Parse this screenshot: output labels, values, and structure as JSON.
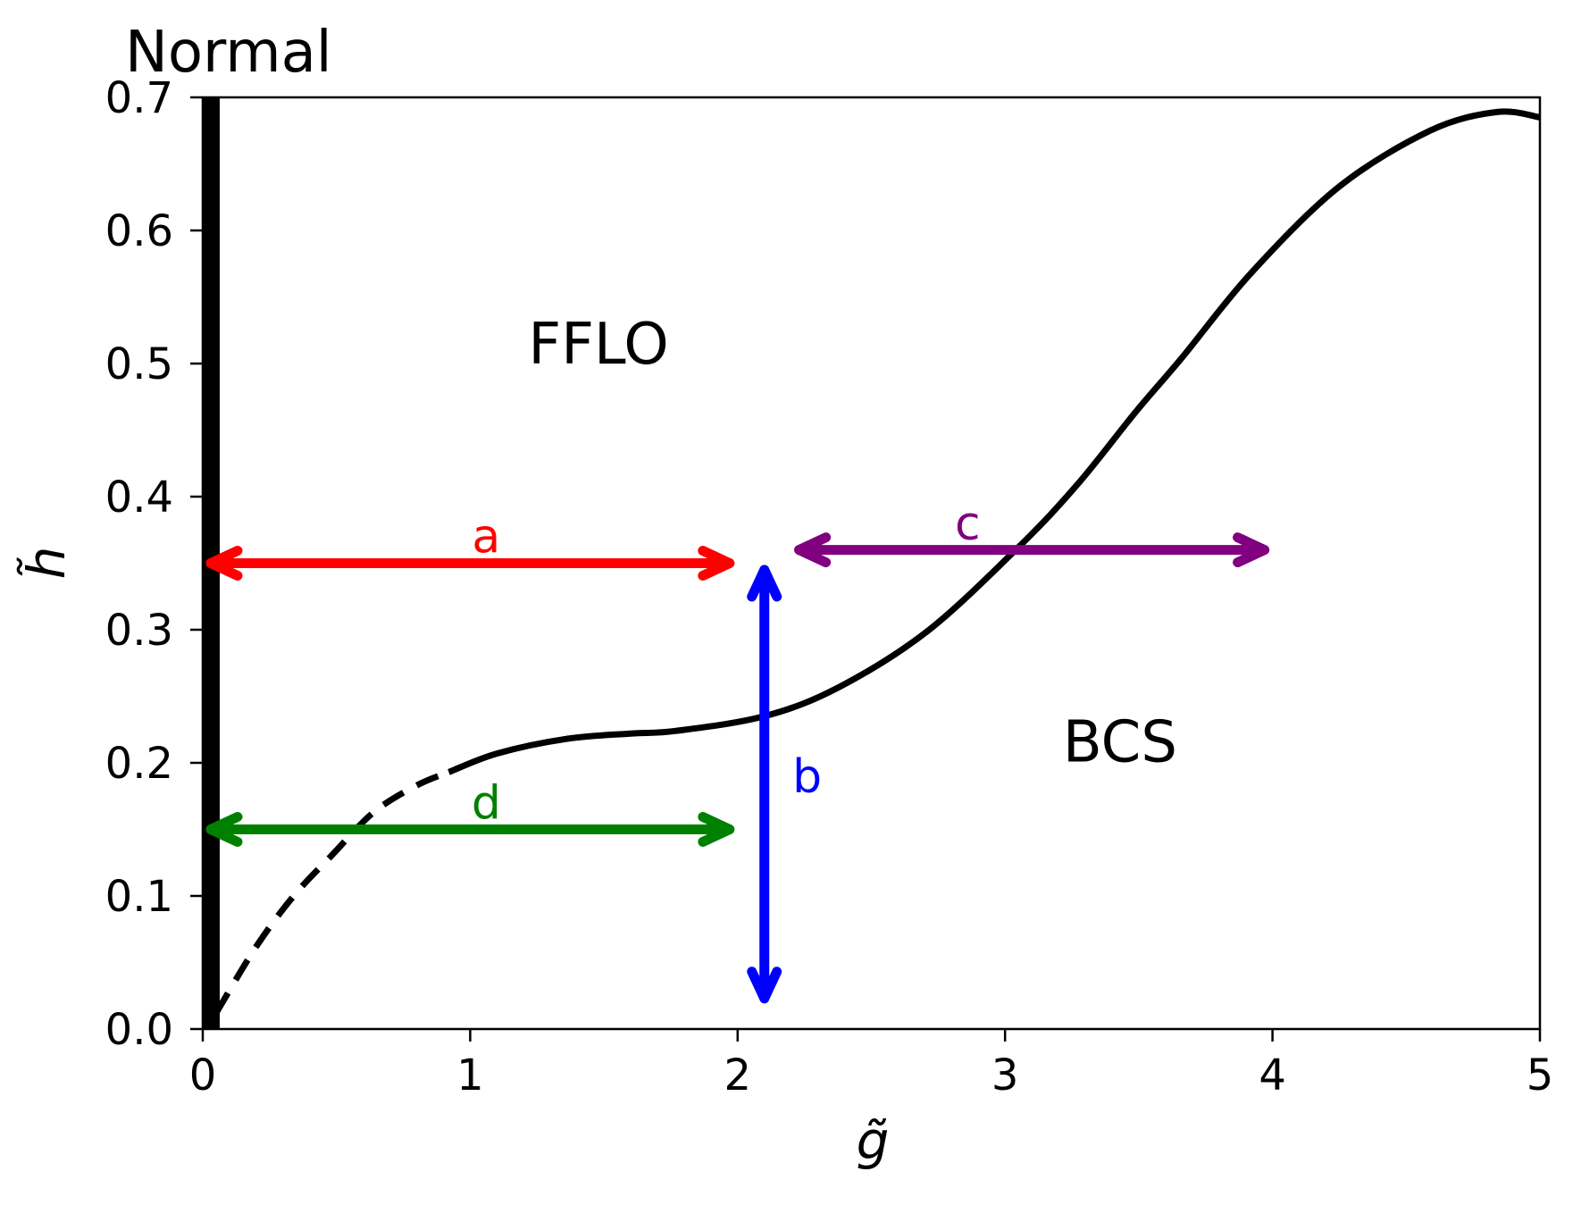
{
  "chart_data": {
    "type": "line",
    "title": "",
    "xlabel": "g̃",
    "ylabel": "h̃",
    "xlim": [
      0,
      5
    ],
    "ylim": [
      0.0,
      0.7
    ],
    "grid": false,
    "legend": null,
    "x_ticks": [
      0,
      1,
      2,
      3,
      4,
      5
    ],
    "x_tick_labels": [
      "0",
      "1",
      "2",
      "3",
      "4",
      "5"
    ],
    "y_ticks": [
      0.0,
      0.1,
      0.2,
      0.3,
      0.4,
      0.5,
      0.6,
      0.7
    ],
    "y_tick_labels": [
      "0.0",
      "0.1",
      "0.2",
      "0.3",
      "0.4",
      "0.5",
      "0.6",
      "0.7"
    ],
    "series": [
      {
        "name": "normal-boundary",
        "style": "solid-thick",
        "color": "#000000",
        "x": [
          0.03,
          0.03
        ],
        "y": [
          0.0,
          0.7
        ]
      },
      {
        "name": "fflo-bcs-boundary-dashed",
        "style": "dashed",
        "color": "#000000",
        "x": [
          0.05,
          0.2,
          0.34,
          0.48,
          0.64,
          0.8,
          0.92
        ],
        "y": [
          0.012,
          0.062,
          0.1,
          0.13,
          0.163,
          0.183,
          0.193
        ]
      },
      {
        "name": "fflo-bcs-boundary",
        "style": "solid",
        "color": "#000000",
        "x": [
          0.92,
          1.1,
          1.36,
          1.6,
          1.77,
          2.1,
          2.38,
          2.71,
          3.05,
          3.27,
          3.49,
          3.66,
          3.92,
          4.25,
          4.59,
          4.84,
          5.0
        ],
        "y": [
          0.193,
          0.207,
          0.218,
          0.222,
          0.224,
          0.235,
          0.257,
          0.299,
          0.362,
          0.409,
          0.464,
          0.504,
          0.568,
          0.633,
          0.675,
          0.689,
          0.685
        ]
      }
    ],
    "annotations": [
      {
        "id": "a",
        "text": "a",
        "color": "#ff0000",
        "type": "double-arrow",
        "x0": 0.03,
        "y0": 0.35,
        "x1": 1.97,
        "y1": 0.35,
        "label_x": 1.06,
        "label_y": 0.37
      },
      {
        "id": "b",
        "text": "b",
        "color": "#0000ff",
        "type": "double-arrow",
        "x0": 2.1,
        "y0": 0.345,
        "x1": 2.1,
        "y1": 0.023,
        "label_x": 2.26,
        "label_y": 0.19
      },
      {
        "id": "c",
        "text": "c",
        "color": "#800080",
        "type": "double-arrow",
        "x0": 2.23,
        "y0": 0.36,
        "x1": 3.97,
        "y1": 0.36,
        "label_x": 2.86,
        "label_y": 0.38
      },
      {
        "id": "d",
        "text": "d",
        "color": "#008000",
        "type": "double-arrow",
        "x0": 0.03,
        "y0": 0.15,
        "x1": 1.97,
        "y1": 0.15,
        "label_x": 1.06,
        "label_y": 0.17
      }
    ],
    "region_labels": [
      {
        "text": "FFLO",
        "x": 1.48,
        "y": 0.516
      },
      {
        "text": "BCS",
        "x": 3.43,
        "y": 0.217
      },
      {
        "text": "Normal",
        "outside_axes": true
      }
    ]
  },
  "labels": {
    "normal": "Normal",
    "fflo": "FFLO",
    "bcs": "BCS",
    "xlabel": "g̃",
    "ylabel": "h̃",
    "arrow_a": "a",
    "arrow_b": "b",
    "arrow_c": "c",
    "arrow_d": "d"
  }
}
